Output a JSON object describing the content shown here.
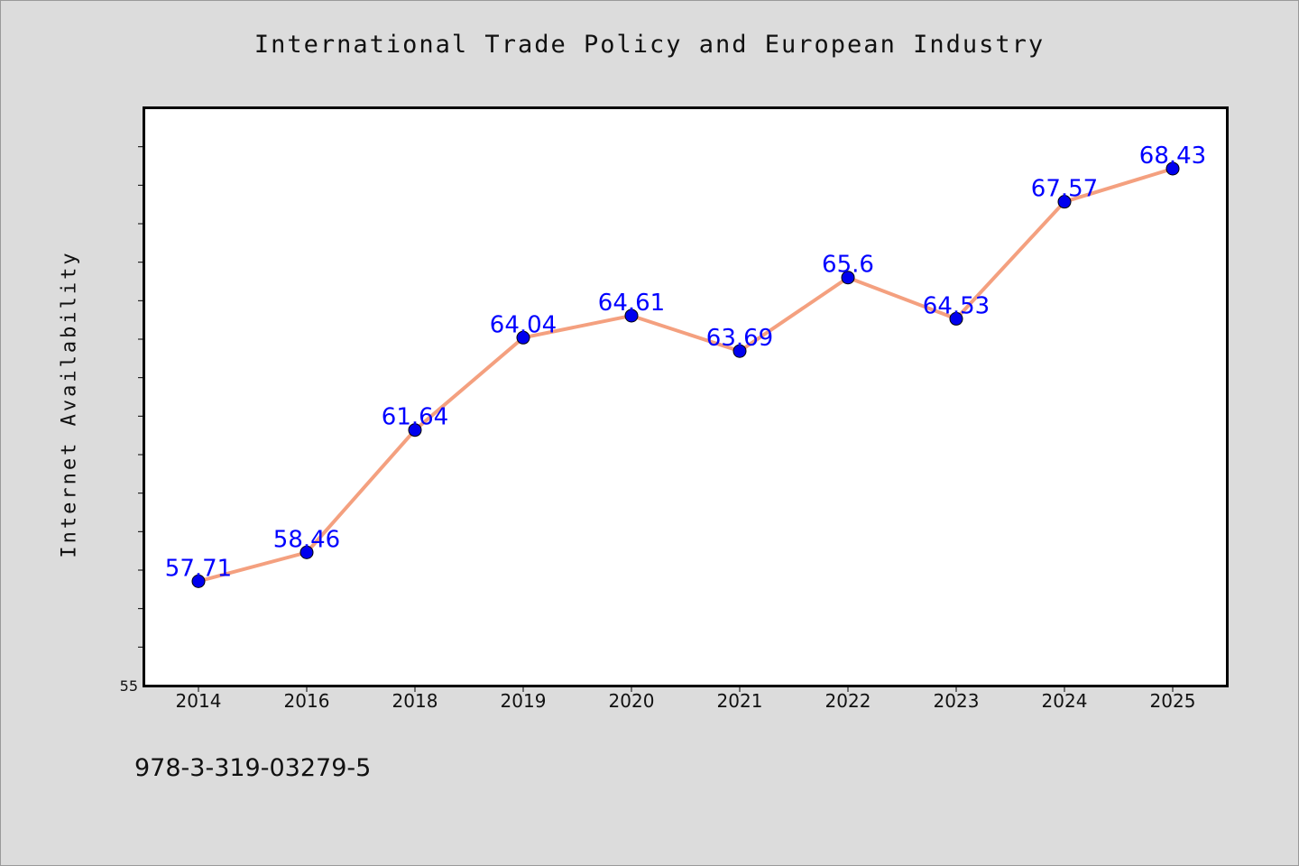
{
  "page": {
    "identifier": "978-3-319-03279-5"
  },
  "chart_data": {
    "type": "line",
    "title": "International Trade Policy and European Industry",
    "xlabel": "",
    "ylabel": "Internet Availability",
    "categories": [
      "2014",
      "2016",
      "2018",
      "2019",
      "2020",
      "2021",
      "2022",
      "2023",
      "2024",
      "2025"
    ],
    "series": [
      {
        "values": [
          57.71,
          58.46,
          61.64,
          64.04,
          64.61,
          63.69,
          65.6,
          64.53,
          67.57,
          68.43
        ],
        "data_labels": [
          "57.71",
          "58.46",
          "61.64",
          "64.04",
          "64.61",
          "63.69",
          "65.6",
          "64.53",
          "67.57",
          "68.43"
        ],
        "line_color": "#f4a07f",
        "marker_color": "#0000ee",
        "label_color": "#0000ff"
      }
    ],
    "ylim": [
      55,
      70
    ],
    "y_tick_labels": [
      "55"
    ],
    "y_minor_tick_step": 1,
    "grid": false,
    "legend": "none",
    "colors": {
      "background": "#dcdcdc",
      "plot_background": "#ffffff"
    }
  }
}
